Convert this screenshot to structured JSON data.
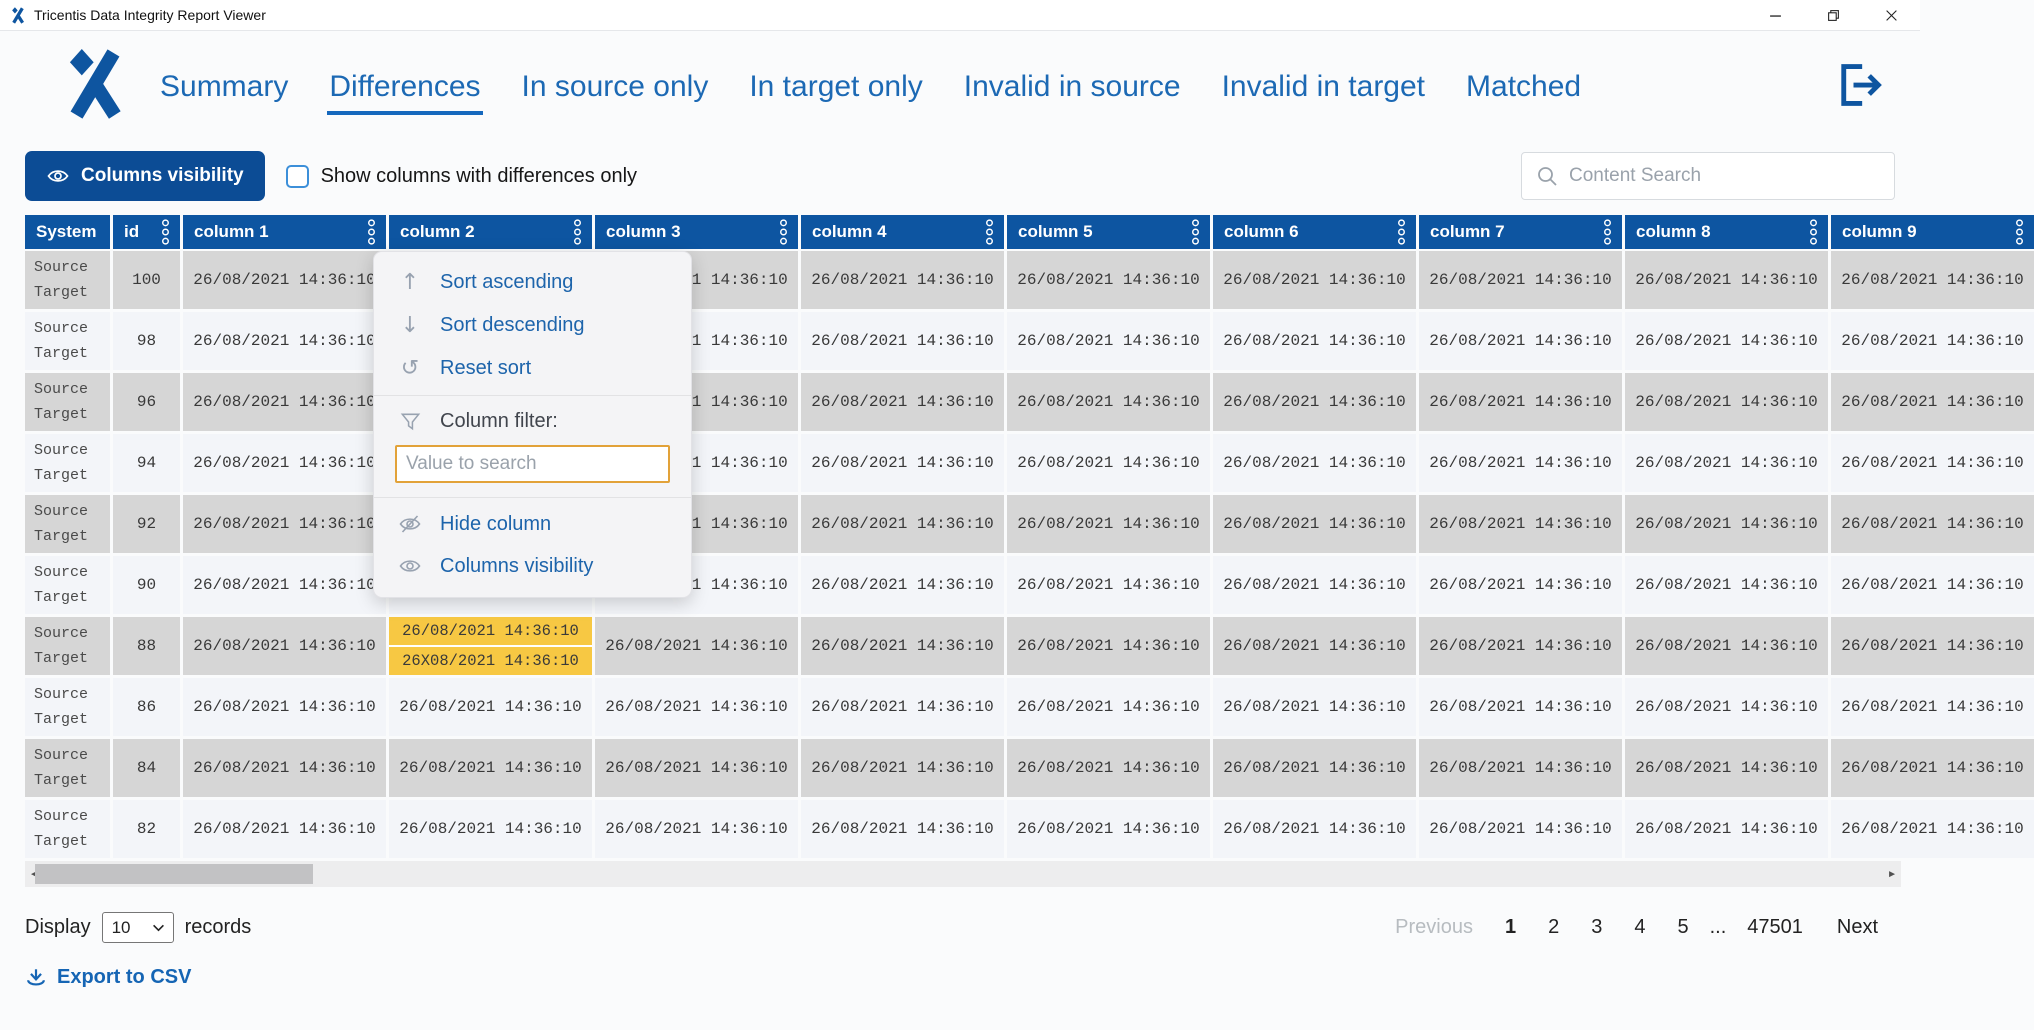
{
  "window": {
    "title": "Tricentis Data Integrity Report Viewer"
  },
  "nav": {
    "tabs": [
      {
        "label": "Summary",
        "active": false
      },
      {
        "label": "Differences",
        "active": true
      },
      {
        "label": "In source only",
        "active": false
      },
      {
        "label": "In target only",
        "active": false
      },
      {
        "label": "Invalid in source",
        "active": false
      },
      {
        "label": "Invalid in target",
        "active": false
      },
      {
        "label": "Matched",
        "active": false
      }
    ],
    "exit_icon": "exit-icon"
  },
  "toolbar": {
    "columns_visibility_label": "Columns visibility",
    "columns_visibility_icon": "eye-icon",
    "show_differences_label": "Show columns with differences only",
    "show_differences_checked": false,
    "content_search_placeholder": "Content Search",
    "search_icon": "search-icon"
  },
  "context_menu": {
    "sort_ascending": "Sort ascending",
    "sort_descending": "Sort descending",
    "reset_sort": "Reset sort",
    "filter_label": "Column filter:",
    "filter_placeholder": "Value to search",
    "hide_column": "Hide column",
    "columns_visibility": "Columns visibility",
    "icons": [
      "arrow-up-icon",
      "arrow-down-icon",
      "reset-sort-icon",
      "funnel-icon",
      "eye-off-icon",
      "eye-icon"
    ]
  },
  "table": {
    "columns": [
      {
        "label": "System",
        "menu": false
      },
      {
        "label": "id",
        "menu": true
      },
      {
        "label": "column 1",
        "menu": true
      },
      {
        "label": "column 2",
        "menu": true
      },
      {
        "label": "column 3",
        "menu": true
      },
      {
        "label": "column 4",
        "menu": true
      },
      {
        "label": "column 5",
        "menu": true
      },
      {
        "label": "column 6",
        "menu": true
      },
      {
        "label": "column 7",
        "menu": true
      },
      {
        "label": "column 8",
        "menu": true
      },
      {
        "label": "column 9",
        "menu": true
      }
    ],
    "system_values": [
      "Source",
      "Target"
    ],
    "default_cell_value": "26/08/2021 14:36:10",
    "row_ids": [
      "100",
      "98",
      "96",
      "94",
      "92",
      "90",
      "88",
      "86",
      "84",
      "82"
    ],
    "difference": {
      "row_id": "88",
      "column_label": "column 2",
      "source_value": "26/08/2021 14:36:10",
      "target_value": "26X08/2021 14:36:10"
    }
  },
  "pagination": {
    "display_label": "Display",
    "page_size": "10",
    "records_label": "records",
    "previous_label": "Previous",
    "pages": [
      "1",
      "2",
      "3",
      "4",
      "5",
      "...",
      "47501"
    ],
    "active_page": "1",
    "next_label": "Next"
  },
  "export": {
    "label": "Export to CSV",
    "icon": "download-icon"
  },
  "colors": {
    "header_blue": "#0d55a1",
    "button_blue": "#0c4c95",
    "nav_blue": "#1c69b4",
    "highlight_yellow": "#f7c843",
    "row_gray": "#d6d6d6",
    "row_light": "#f3f5f9"
  }
}
